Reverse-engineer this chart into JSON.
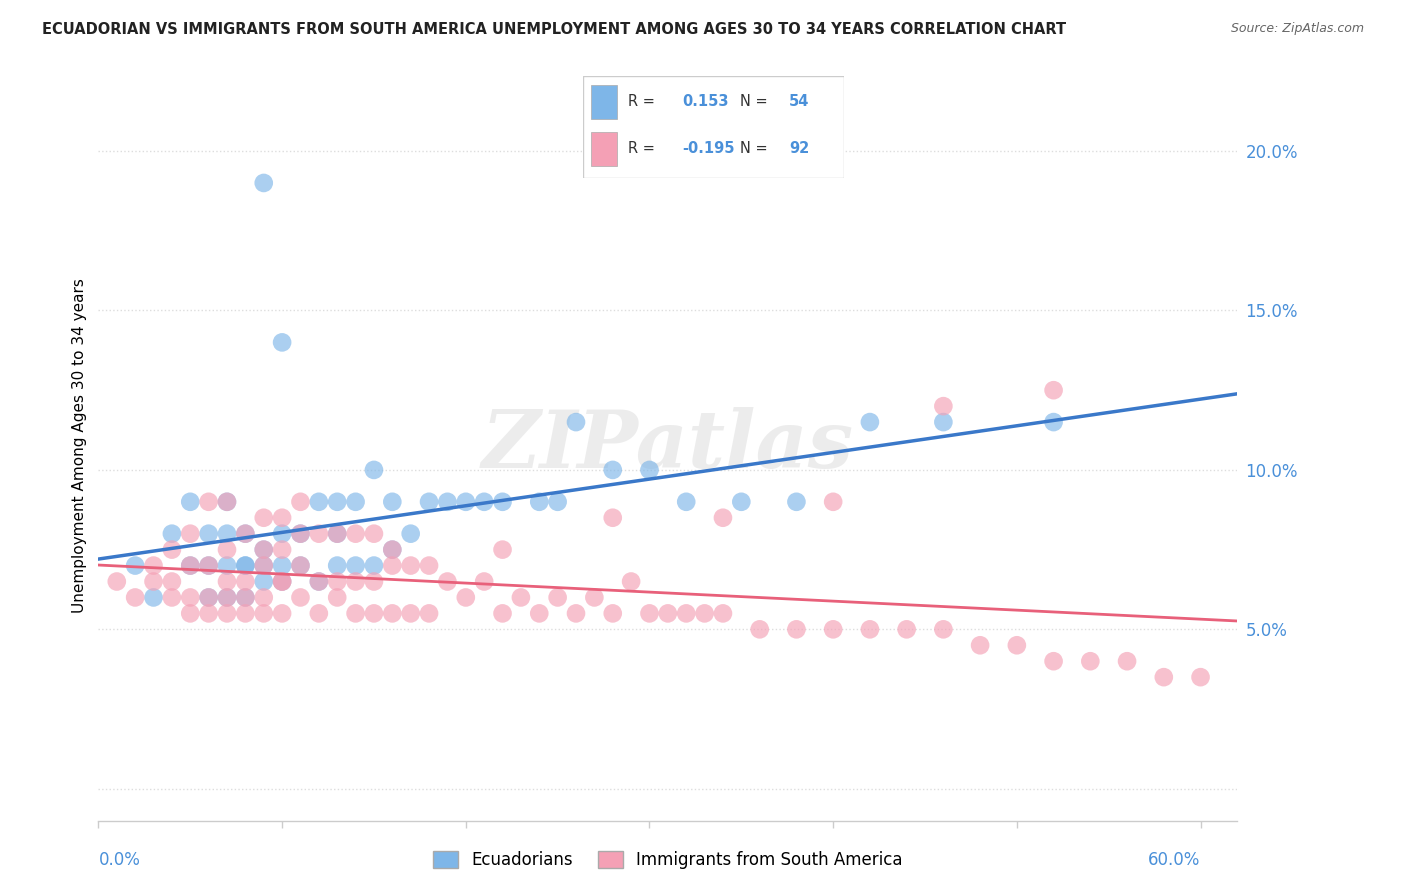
{
  "title": "ECUADORIAN VS IMMIGRANTS FROM SOUTH AMERICA UNEMPLOYMENT AMONG AGES 30 TO 34 YEARS CORRELATION CHART",
  "source": "Source: ZipAtlas.com",
  "ylabel": "Unemployment Among Ages 30 to 34 years",
  "xlim": [
    0.0,
    0.62
  ],
  "ylim": [
    -0.01,
    0.225
  ],
  "blue_R": 0.153,
  "blue_N": 54,
  "pink_R": -0.195,
  "pink_N": 92,
  "blue_color": "#7EB6E8",
  "pink_color": "#F4A0B5",
  "blue_line_color": "#3A78C9",
  "pink_line_color": "#E8607A",
  "legend_label_blue": "Ecuadorians",
  "legend_label_pink": "Immigrants from South America",
  "blue_scatter_x": [
    0.02,
    0.03,
    0.04,
    0.05,
    0.05,
    0.06,
    0.06,
    0.06,
    0.07,
    0.07,
    0.07,
    0.07,
    0.08,
    0.08,
    0.08,
    0.08,
    0.09,
    0.09,
    0.09,
    0.09,
    0.1,
    0.1,
    0.1,
    0.1,
    0.11,
    0.11,
    0.12,
    0.12,
    0.13,
    0.13,
    0.13,
    0.14,
    0.14,
    0.15,
    0.15,
    0.16,
    0.16,
    0.17,
    0.18,
    0.19,
    0.2,
    0.21,
    0.22,
    0.24,
    0.25,
    0.26,
    0.28,
    0.3,
    0.32,
    0.35,
    0.38,
    0.42,
    0.46,
    0.52
  ],
  "blue_scatter_y": [
    0.07,
    0.06,
    0.08,
    0.07,
    0.09,
    0.06,
    0.07,
    0.08,
    0.06,
    0.07,
    0.08,
    0.09,
    0.06,
    0.07,
    0.07,
    0.08,
    0.065,
    0.07,
    0.075,
    0.19,
    0.065,
    0.07,
    0.08,
    0.14,
    0.07,
    0.08,
    0.065,
    0.09,
    0.07,
    0.08,
    0.09,
    0.07,
    0.09,
    0.07,
    0.1,
    0.075,
    0.09,
    0.08,
    0.09,
    0.09,
    0.09,
    0.09,
    0.09,
    0.09,
    0.09,
    0.115,
    0.1,
    0.1,
    0.09,
    0.09,
    0.09,
    0.115,
    0.115,
    0.115
  ],
  "pink_scatter_x": [
    0.01,
    0.02,
    0.03,
    0.03,
    0.04,
    0.04,
    0.04,
    0.05,
    0.05,
    0.05,
    0.05,
    0.06,
    0.06,
    0.06,
    0.06,
    0.07,
    0.07,
    0.07,
    0.07,
    0.07,
    0.08,
    0.08,
    0.08,
    0.08,
    0.09,
    0.09,
    0.09,
    0.09,
    0.09,
    0.1,
    0.1,
    0.1,
    0.1,
    0.11,
    0.11,
    0.11,
    0.11,
    0.12,
    0.12,
    0.12,
    0.13,
    0.13,
    0.13,
    0.14,
    0.14,
    0.14,
    0.15,
    0.15,
    0.15,
    0.16,
    0.16,
    0.17,
    0.17,
    0.18,
    0.18,
    0.19,
    0.2,
    0.21,
    0.22,
    0.23,
    0.24,
    0.25,
    0.26,
    0.27,
    0.28,
    0.29,
    0.3,
    0.31,
    0.32,
    0.33,
    0.34,
    0.36,
    0.38,
    0.4,
    0.42,
    0.44,
    0.46,
    0.48,
    0.5,
    0.52,
    0.54,
    0.56,
    0.58,
    0.6,
    0.52,
    0.46,
    0.4,
    0.34,
    0.28,
    0.22,
    0.16,
    0.1
  ],
  "pink_scatter_y": [
    0.065,
    0.06,
    0.065,
    0.07,
    0.06,
    0.065,
    0.075,
    0.055,
    0.06,
    0.07,
    0.08,
    0.055,
    0.06,
    0.07,
    0.09,
    0.055,
    0.06,
    0.065,
    0.075,
    0.09,
    0.055,
    0.06,
    0.065,
    0.08,
    0.055,
    0.06,
    0.07,
    0.075,
    0.085,
    0.055,
    0.065,
    0.075,
    0.085,
    0.06,
    0.07,
    0.08,
    0.09,
    0.055,
    0.065,
    0.08,
    0.06,
    0.065,
    0.08,
    0.055,
    0.065,
    0.08,
    0.055,
    0.065,
    0.08,
    0.055,
    0.07,
    0.055,
    0.07,
    0.055,
    0.07,
    0.065,
    0.06,
    0.065,
    0.055,
    0.06,
    0.055,
    0.06,
    0.055,
    0.06,
    0.055,
    0.065,
    0.055,
    0.055,
    0.055,
    0.055,
    0.055,
    0.05,
    0.05,
    0.05,
    0.05,
    0.05,
    0.05,
    0.045,
    0.045,
    0.04,
    0.04,
    0.04,
    0.035,
    0.035,
    0.125,
    0.12,
    0.09,
    0.085,
    0.085,
    0.075,
    0.075,
    0.065
  ],
  "ytick_vals": [
    0.0,
    0.05,
    0.1,
    0.15,
    0.2
  ],
  "ytick_labels": [
    "",
    "5.0%",
    "10.0%",
    "15.0%",
    "20.0%"
  ],
  "xtick_vals": [
    0.0,
    0.1,
    0.2,
    0.3,
    0.4,
    0.5,
    0.6
  ],
  "grid_color": "#dddddd",
  "spine_color": "#cccccc"
}
